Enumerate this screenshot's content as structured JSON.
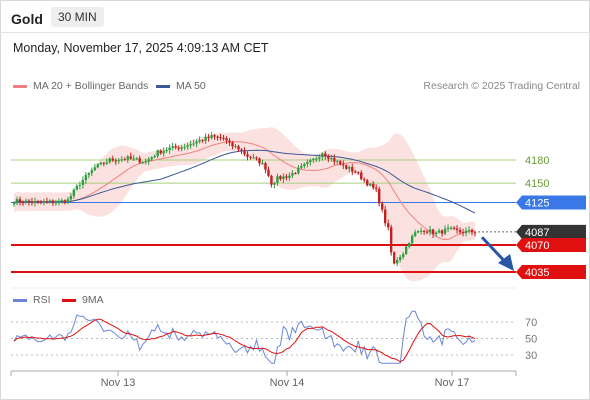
{
  "header": {
    "symbol": "Gold",
    "timeframe": "30 MIN",
    "datetime": "Monday, November 17, 2025 4:09:13 AM CET"
  },
  "legend": {
    "ma20": "MA 20 + Bollinger Bands",
    "ma50": "MA 50",
    "credit": "Research © 2025 Trading Central",
    "rsi": "RSI",
    "rsi_ma": "9MA"
  },
  "colors": {
    "ma20": "#f08080",
    "ma50": "#3b5998",
    "bollinger_fill": "#fbdcdc",
    "green_level": "#a8cf7e",
    "blue_level": "#3a78e8",
    "red_level": "#e01010",
    "candle_up": "#2e9e3e",
    "candle_down": "#c42020",
    "rsi": "#6b86d6",
    "rsi_ma": "#e01010",
    "arrow": "#2a56a8",
    "last_price": "#333333"
  },
  "chart_data": {
    "type": "candlestick",
    "y_range": [
      4010,
      4230
    ],
    "x_ticks": [
      "Nov 13",
      "Nov 14",
      "Nov 17"
    ],
    "levels": [
      {
        "label": "4180",
        "value": 4180,
        "style": "green"
      },
      {
        "label": "4150",
        "value": 4150,
        "style": "green"
      },
      {
        "label": "4125",
        "value": 4125,
        "style": "blue"
      },
      {
        "label": "4087",
        "value": 4087,
        "style": "last"
      },
      {
        "label": "4070",
        "value": 4070,
        "style": "red"
      },
      {
        "label": "4035",
        "value": 4035,
        "style": "red"
      }
    ],
    "rsi_ticks": [
      70,
      50,
      30
    ],
    "rsi_range": [
      15,
      85
    ]
  }
}
